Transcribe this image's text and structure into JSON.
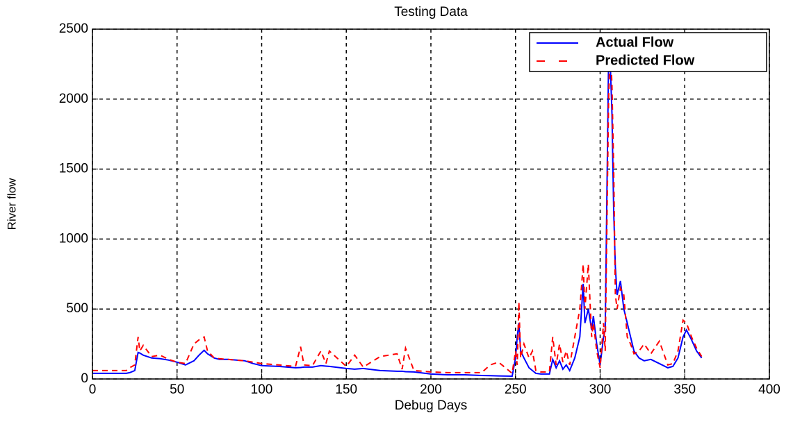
{
  "chart_data": {
    "type": "line",
    "title": "Testing Data",
    "xlabel": "Debug Days",
    "ylabel": "River flow",
    "x": [
      0,
      10,
      20,
      22,
      25,
      27,
      28,
      30,
      35,
      40,
      45,
      50,
      55,
      60,
      63,
      66,
      68,
      72,
      75,
      80,
      90,
      95,
      100,
      110,
      120,
      123,
      125,
      130,
      135,
      138,
      140,
      150,
      155,
      160,
      170,
      180,
      183,
      185,
      190,
      200,
      210,
      220,
      230,
      235,
      240,
      248,
      250,
      251,
      252,
      253,
      255,
      258,
      260,
      262,
      265,
      270,
      272,
      274,
      276,
      278,
      280,
      282,
      285,
      288,
      290,
      291,
      293,
      295,
      296,
      298,
      300,
      302,
      303,
      305,
      306,
      307,
      308,
      309,
      310,
      312,
      314,
      316,
      318,
      320,
      323,
      326,
      330,
      335,
      340,
      343,
      346,
      349,
      351,
      354,
      357,
      360
    ],
    "series": [
      {
        "name": "Actual Flow",
        "color": "#0000ff",
        "dash": false,
        "values": [
          40,
          40,
          40,
          45,
          60,
          190,
          185,
          170,
          150,
          145,
          135,
          120,
          100,
          130,
          170,
          205,
          180,
          150,
          140,
          140,
          130,
          110,
          95,
          90,
          80,
          82,
          85,
          85,
          95,
          92,
          90,
          75,
          70,
          75,
          60,
          55,
          55,
          52,
          50,
          35,
          30,
          30,
          25,
          24,
          22,
          20,
          150,
          300,
          400,
          200,
          150,
          80,
          60,
          40,
          35,
          35,
          140,
          80,
          130,
          70,
          100,
          60,
          150,
          300,
          680,
          400,
          500,
          350,
          450,
          250,
          100,
          300,
          350,
          2300,
          2250,
          1900,
          1200,
          800,
          600,
          700,
          500,
          400,
          300,
          200,
          150,
          130,
          140,
          110,
          80,
          90,
          150,
          300,
          350,
          280,
          200,
          150
        ]
      },
      {
        "name": "Predicted Flow",
        "color": "#ff0000",
        "dash": true,
        "values": [
          60,
          60,
          60,
          80,
          100,
          300,
          200,
          240,
          160,
          170,
          140,
          120,
          110,
          250,
          280,
          300,
          200,
          150,
          145,
          140,
          130,
          120,
          110,
          100,
          90,
          230,
          100,
          95,
          200,
          110,
          200,
          90,
          170,
          85,
          160,
          180,
          70,
          220,
          60,
          50,
          45,
          45,
          45,
          100,
          120,
          40,
          200,
          100,
          550,
          150,
          250,
          150,
          200,
          60,
          50,
          50,
          300,
          100,
          250,
          120,
          200,
          100,
          300,
          500,
          820,
          500,
          820,
          300,
          400,
          200,
          80,
          400,
          200,
          2000,
          2400,
          2100,
          1500,
          600,
          500,
          650,
          600,
          300,
          250,
          180,
          200,
          250,
          180,
          270,
          100,
          110,
          200,
          420,
          400,
          300,
          220,
          160
        ]
      }
    ],
    "xlim": [
      0,
      400
    ],
    "xticks": [
      0,
      50,
      100,
      150,
      200,
      250,
      300,
      350,
      400
    ],
    "ylim": [
      0,
      2500
    ],
    "yticks": [
      0,
      500,
      1000,
      1500,
      2000,
      2500
    ],
    "grid": true,
    "legend": "upper right"
  }
}
